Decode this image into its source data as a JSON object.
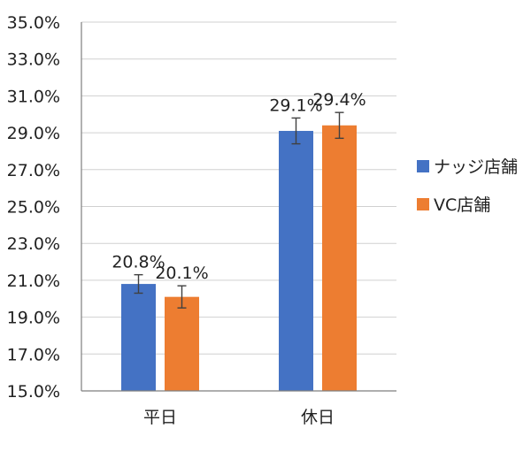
{
  "chart_data": {
    "type": "bar",
    "categories": [
      "平日",
      "休日"
    ],
    "series": [
      {
        "name": "ナッジ店舗",
        "values": [
          20.8,
          29.1
        ],
        "error": [
          0.5,
          0.7
        ],
        "labels": [
          "20.8%",
          "29.1%"
        ],
        "color": "#4472c4"
      },
      {
        "name": "VC店舗",
        "values": [
          20.1,
          29.4
        ],
        "error": [
          0.6,
          0.7
        ],
        "labels": [
          "20.1%",
          "29.4%"
        ],
        "color": "#ed7d31"
      }
    ],
    "ylim": [
      15,
      35
    ],
    "yticks": [
      "15.0%",
      "17.0%",
      "19.0%",
      "21.0%",
      "23.0%",
      "25.0%",
      "27.0%",
      "29.0%",
      "31.0%",
      "33.0%",
      "35.0%"
    ],
    "grid": true,
    "legend": "right",
    "title": "",
    "xlabel": "",
    "ylabel": "",
    "colors": {
      "grid": "#d0d0d0",
      "axis": "#7f7f7f",
      "errorbar": "#404040"
    }
  }
}
